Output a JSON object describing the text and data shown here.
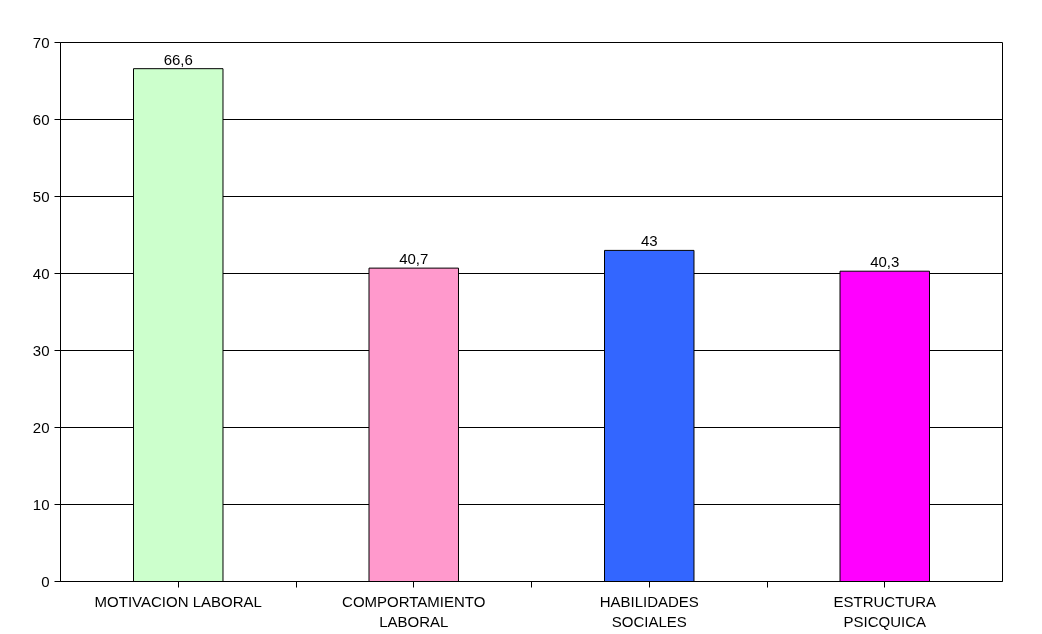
{
  "chart_data": {
    "type": "bar",
    "categories": [
      "MOTIVACION LABORAL",
      "COMPORTAMIENTO LABORAL",
      "HABILIDADES SOCIALES",
      "ESTRUCTURA PSICQUICA"
    ],
    "values": [
      66.6,
      40.7,
      43,
      40.3
    ],
    "colors": [
      "#ccffcc",
      "#ff99cc",
      "#3366ff",
      "#ff00ff"
    ],
    "value_labels": [
      "66,6",
      "40,7",
      "43",
      "40,3"
    ],
    "ylim": [
      0,
      70
    ],
    "yticks": [
      0,
      10,
      20,
      30,
      40,
      50,
      60,
      70
    ],
    "grid": "y"
  }
}
